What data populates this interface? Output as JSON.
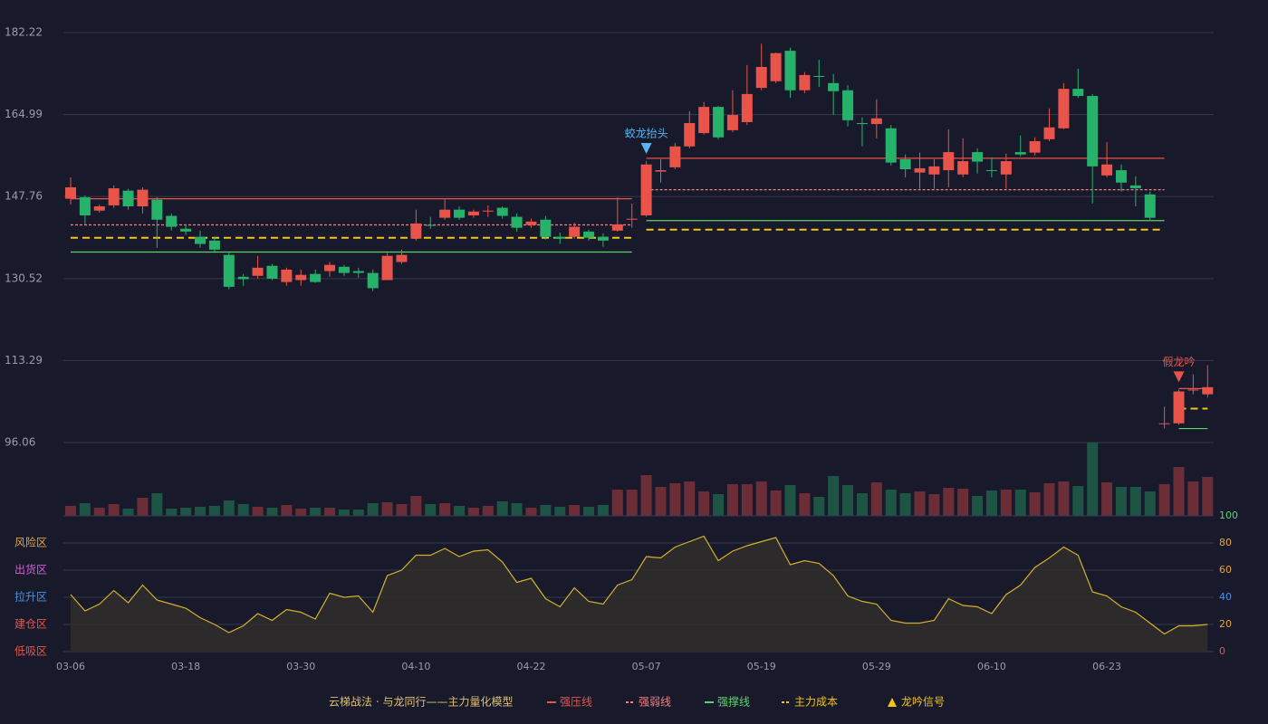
{
  "chart_data": [
    {
      "type": "candlestick",
      "title": "云梯战法 · 与龙同行——主力量化模型",
      "categories": [
        "03-06",
        null,
        null,
        null,
        null,
        null,
        null,
        null,
        "03-18",
        null,
        null,
        null,
        null,
        null,
        null,
        null,
        "03-30",
        null,
        null,
        null,
        null,
        null,
        null,
        null,
        "04-10",
        null,
        null,
        null,
        null,
        null,
        null,
        null,
        "04-22",
        null,
        null,
        null,
        null,
        null,
        null,
        null,
        "05-07",
        null,
        null,
        null,
        null,
        null,
        null,
        null,
        "05-19",
        null,
        null,
        null,
        null,
        null,
        null,
        null,
        "05-29",
        null,
        null,
        null,
        null,
        null,
        null,
        null,
        "06-10",
        null,
        null,
        null,
        null,
        null,
        null,
        null,
        "06-23",
        null,
        null,
        null,
        null,
        null,
        null,
        null
      ],
      "open": [
        147.3,
        147.6,
        144.8,
        145.9,
        149.0,
        145.7,
        147.1,
        143.7,
        141.0,
        139.3,
        138.5,
        135.5,
        130.9,
        131.1,
        133.2,
        129.8,
        130.2,
        131.5,
        132.1,
        133.0,
        132.1,
        131.7,
        130.2,
        134.0,
        138.9,
        141.8,
        143.3,
        145.0,
        143.8,
        144.6,
        145.4,
        143.5,
        141.8,
        142.9,
        139.3,
        139.3,
        140.4,
        139.3,
        140.6,
        142.9,
        143.8,
        153.0,
        153.9,
        158.3,
        161.1,
        166.6,
        161.7,
        163.4,
        170.6,
        172.0,
        178.4,
        170.1,
        173.1,
        171.6,
        170.1,
        163.2,
        163.0,
        162.1,
        155.6,
        152.8,
        152.4,
        153.3,
        152.4,
        157.1,
        153.3,
        152.4,
        157.1,
        157.0,
        159.8,
        162.1,
        170.4,
        168.9,
        152.2,
        153.3,
        150.1,
        148.2,
        100.0,
        100.1,
        107.0,
        106.2
      ],
      "high": [
        151.8,
        148.0,
        146.1,
        150.1,
        149.4,
        149.7,
        147.6,
        144.2,
        141.9,
        140.6,
        139.3,
        135.9,
        131.5,
        135.3,
        133.6,
        132.8,
        132.4,
        132.4,
        134.0,
        133.4,
        132.8,
        132.4,
        135.9,
        136.6,
        145.0,
        143.5,
        147.3,
        145.7,
        145.0,
        145.9,
        145.7,
        144.2,
        143.1,
        143.7,
        140.2,
        142.3,
        140.8,
        140.0,
        147.6,
        146.3,
        155.2,
        155.6,
        159.0,
        165.7,
        167.6,
        166.8,
        170.1,
        175.4,
        179.9,
        178.0,
        179.0,
        173.9,
        176.5,
        173.5,
        171.2,
        164.4,
        168.2,
        162.8,
        156.6,
        157.0,
        155.6,
        161.9,
        160.0,
        157.9,
        156.0,
        156.8,
        160.6,
        160.2,
        166.3,
        171.6,
        174.6,
        169.3,
        159.2,
        154.5,
        152.0,
        148.8,
        103.6,
        107.2,
        110.4,
        112.3
      ],
      "low": [
        146.1,
        141.9,
        144.4,
        145.4,
        145.0,
        144.2,
        137.0,
        140.6,
        139.7,
        137.0,
        136.2,
        128.3,
        129.0,
        130.5,
        130.2,
        129.0,
        129.0,
        129.6,
        130.9,
        131.1,
        130.7,
        127.9,
        130.2,
        133.6,
        138.5,
        141.0,
        142.9,
        142.9,
        143.3,
        143.5,
        143.1,
        140.4,
        141.2,
        138.7,
        137.8,
        138.9,
        138.5,
        137.2,
        140.4,
        141.2,
        143.5,
        150.7,
        153.5,
        157.9,
        160.8,
        159.8,
        161.3,
        162.8,
        170.1,
        171.6,
        168.5,
        169.5,
        170.8,
        164.9,
        162.5,
        158.3,
        160.0,
        154.3,
        151.8,
        149.4,
        149.4,
        149.7,
        151.8,
        152.6,
        151.8,
        149.4,
        156.2,
        156.4,
        159.4,
        161.9,
        168.5,
        146.3,
        151.8,
        148.8,
        145.7,
        142.7,
        99.0,
        99.8,
        106.2,
        105.5
      ],
      "close": [
        149.7,
        143.8,
        145.7,
        149.5,
        145.7,
        149.2,
        142.9,
        141.4,
        140.4,
        137.8,
        136.6,
        128.8,
        130.4,
        132.8,
        130.5,
        132.4,
        131.3,
        129.8,
        133.4,
        131.7,
        131.7,
        128.5,
        135.3,
        135.5,
        142.1,
        141.6,
        145.0,
        143.3,
        144.6,
        144.8,
        143.7,
        141.2,
        142.5,
        139.3,
        138.9,
        141.4,
        139.1,
        138.5,
        141.9,
        143.1,
        154.5,
        153.3,
        158.3,
        163.2,
        166.6,
        160.2,
        164.9,
        169.3,
        175.0,
        177.9,
        170.1,
        173.3,
        172.9,
        169.9,
        163.8,
        163.0,
        164.2,
        154.9,
        153.5,
        153.7,
        154.1,
        157.1,
        155.2,
        155.1,
        153.2,
        155.2,
        156.6,
        159.4,
        162.3,
        170.4,
        168.9,
        154.1,
        154.5,
        150.7,
        149.5,
        143.3,
        100.1,
        106.8,
        107.2,
        107.7
      ],
      "volume": [
        11,
        14,
        9,
        13,
        8,
        20,
        25,
        8,
        9,
        10,
        11,
        17,
        13,
        10,
        9,
        12,
        8,
        9,
        9,
        7,
        7,
        14,
        15,
        13,
        22,
        13,
        14,
        11,
        9,
        11,
        16,
        14,
        9,
        12,
        10,
        12,
        10,
        12,
        29,
        29,
        45,
        32,
        36,
        38,
        27,
        24,
        35,
        35,
        38,
        28,
        34,
        25,
        21,
        44,
        34,
        25,
        37,
        29,
        25,
        27,
        24,
        31,
        30,
        22,
        28,
        29,
        29,
        26,
        36,
        38,
        33,
        81,
        37,
        32,
        32,
        27,
        35,
        54,
        38,
        43
      ],
      "up_color": "#e8534a",
      "down_color": "#26b26a",
      "volume_up_color": "#6b2e38",
      "volume_down_color": "#1d5443",
      "ylim": [
        96.06,
        182.22
      ],
      "yticks": [
        96.06,
        113.29,
        130.52,
        147.76,
        164.99,
        182.22
      ],
      "grid": true,
      "ranges": [
        [
          0,
          39
        ],
        [
          40,
          76
        ],
        [
          77,
          79
        ]
      ],
      "lines": [
        {
          "name": "强压线",
          "color": "#e8534a",
          "dashed": false,
          "values": [
            147.3,
            155.8,
            107.4
          ]
        },
        {
          "name": "强弱线",
          "color": "#f08080",
          "dashed": true,
          "values": [
            141.8,
            149.2,
            null
          ]
        },
        {
          "name": "强撑线",
          "color": "#5bd36a",
          "dashed": false,
          "values": [
            136.1,
            142.7,
            99.0
          ]
        },
        {
          "name": "主力成本",
          "color": "#f0c419",
          "dashed": true,
          "values": [
            139.1,
            140.8,
            103.2
          ]
        }
      ],
      "signal_name": "龙吟信号",
      "signal_color": "#f0c419",
      "annotations": [
        {
          "text": "蛟龙抬头",
          "index": 40,
          "color": "#5ab4f0"
        },
        {
          "text": "假龙吟",
          "index": 77,
          "color": "#e8534a"
        }
      ]
    },
    {
      "type": "area",
      "values": [
        42,
        30,
        35,
        45,
        36,
        49,
        38,
        35,
        32,
        25,
        20,
        14,
        19,
        28,
        23,
        31,
        29,
        24,
        43,
        40,
        41,
        29,
        56,
        60,
        71,
        71,
        76,
        70,
        74,
        75,
        66,
        51,
        54,
        39,
        33,
        47,
        37,
        35,
        49,
        53,
        70,
        69,
        77,
        81,
        85,
        67,
        74,
        78,
        81,
        84,
        64,
        67,
        65,
        56,
        41,
        37,
        35,
        23,
        21,
        21,
        23,
        39,
        34,
        33,
        28,
        42,
        49,
        62,
        69,
        77,
        71,
        44,
        41,
        33,
        29,
        21,
        13,
        19,
        19,
        20
      ],
      "color": "#d4b02a",
      "fill": "#2f2c2a",
      "ylim": [
        0,
        100
      ],
      "yticks": [
        0,
        20,
        40,
        60,
        80,
        100
      ],
      "tick_colors": [
        "#e8534a",
        "#e8a33a",
        "#4a90e2",
        "#e8a33a",
        "#e8a33a",
        "#5bd36a"
      ],
      "zones": [
        {
          "label": "风险区",
          "color": "#e8a33a"
        },
        {
          "label": "出货区",
          "color": "#d85ad8"
        },
        {
          "label": "拉升区",
          "color": "#4a90e2"
        },
        {
          "label": "建仓区",
          "color": "#e8534a"
        },
        {
          "label": "低吸区",
          "color": "#e8534a"
        }
      ],
      "grid": true
    }
  ]
}
